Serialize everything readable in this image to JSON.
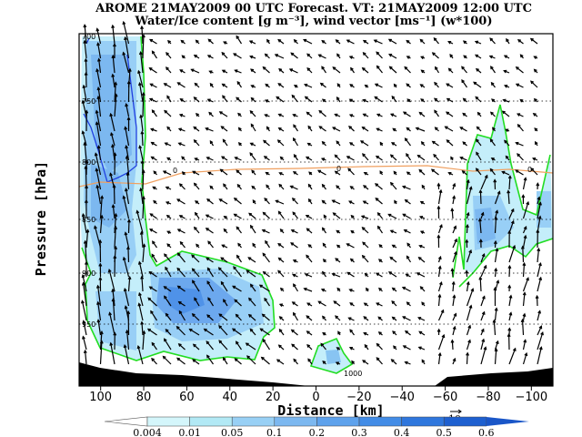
{
  "chart_data": {
    "type": "heatmap",
    "title_line1": "AROME 21MAY2009 00 UTC Forecast. VT: 21MAY2009 12:00 UTC",
    "title_line2": "Water/Ice content [g m⁻³],  wind vector [ms⁻¹] (w*100)",
    "xlabel": "Distance [km]",
    "ylabel": "Pressure [hPa]",
    "xlim": [
      110,
      -110
    ],
    "ylim": [
      1020,
      700
    ],
    "x_ticks": [
      "100",
      "80",
      "60",
      "40",
      "20",
      "0",
      "-20",
      "-40",
      "-60",
      "-80",
      "-100"
    ],
    "x_tick_values": [
      100,
      80,
      60,
      40,
      20,
      0,
      -20,
      -40,
      -60,
      -80,
      -100
    ],
    "pressure_levels": [
      "700",
      "750",
      "800",
      "850",
      "900",
      "950",
      "1000"
    ],
    "pressure_level_values": [
      700,
      750,
      800,
      850,
      900,
      950,
      1000
    ],
    "isotherm_label": "0",
    "reference_vector_label": "10",
    "colorbar": {
      "levels": [
        "0.004",
        "0.01",
        "0.05",
        "0.1",
        "0.2",
        "0.3",
        "0.4",
        "0.5",
        "0.6"
      ],
      "colors": [
        "#ffffff",
        "#d4f6fb",
        "#b2e9f5",
        "#98d0f5",
        "#7cb8f0",
        "#5ea2ec",
        "#428ce6",
        "#2f77dd",
        "#1e60d0",
        "#1a56c8"
      ]
    },
    "colors": {
      "cloud_outline": "#22dd22",
      "zero_isotherm": "#f0a060",
      "ice_contour": "#2040e0",
      "terrain": "#000000"
    }
  }
}
